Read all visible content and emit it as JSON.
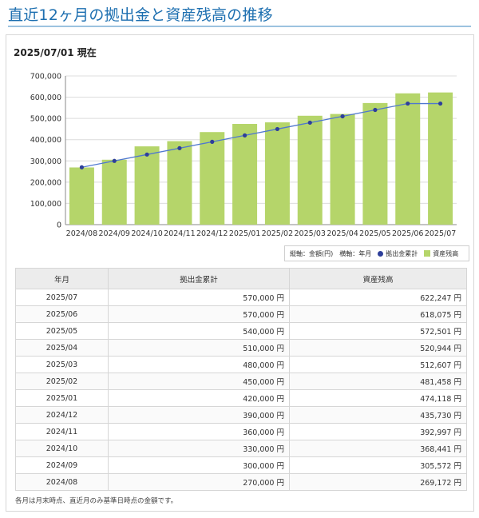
{
  "page": {
    "title": "直近12ヶ月の拠出金と資産残高の推移",
    "asof": "2025/07/01 現在",
    "footnote": "各月は月末時点、直近月のみ基準日時点の金額です。"
  },
  "legend": {
    "axis_note": "縦軸：金額(円)　横軸：年月",
    "line_label": "拠出金累計",
    "bar_label": "資産残高"
  },
  "table": {
    "headers": [
      "年月",
      "拠出金累計",
      "資産残高"
    ],
    "rows": [
      [
        "2025/07",
        "570,000 円",
        "622,247 円"
      ],
      [
        "2025/06",
        "570,000 円",
        "618,075 円"
      ],
      [
        "2025/05",
        "540,000 円",
        "572,501 円"
      ],
      [
        "2025/04",
        "510,000 円",
        "520,944 円"
      ],
      [
        "2025/03",
        "480,000 円",
        "512,607 円"
      ],
      [
        "2025/02",
        "450,000 円",
        "481,458 円"
      ],
      [
        "2025/01",
        "420,000 円",
        "474,118 円"
      ],
      [
        "2024/12",
        "390,000 円",
        "435,730 円"
      ],
      [
        "2024/11",
        "360,000 円",
        "392,997 円"
      ],
      [
        "2024/10",
        "330,000 円",
        "368,441 円"
      ],
      [
        "2024/09",
        "300,000 円",
        "305,572 円"
      ],
      [
        "2024/08",
        "270,000 円",
        "269,172 円"
      ]
    ]
  },
  "chart_data": {
    "type": "bar",
    "categories": [
      "2024/08",
      "2024/09",
      "2024/10",
      "2024/11",
      "2024/12",
      "2025/01",
      "2025/02",
      "2025/03",
      "2025/04",
      "2025/05",
      "2025/06",
      "2025/07"
    ],
    "series": [
      {
        "name": "資産残高",
        "type": "bar",
        "color": "#b5d56a",
        "values": [
          269172,
          305572,
          368441,
          392997,
          435730,
          474118,
          481458,
          512607,
          520944,
          572501,
          618075,
          622247
        ]
      },
      {
        "name": "拠出金累計",
        "type": "line",
        "color": "#2e3f9a",
        "line_color": "#4f78cf",
        "values": [
          270000,
          300000,
          330000,
          360000,
          390000,
          420000,
          450000,
          480000,
          510000,
          540000,
          570000,
          570000
        ]
      }
    ],
    "yticks": [
      "0",
      "100,000",
      "200,000",
      "300,000",
      "400,000",
      "500,000",
      "600,000",
      "700,000"
    ],
    "ylim": [
      0,
      700000
    ],
    "grid": true
  }
}
